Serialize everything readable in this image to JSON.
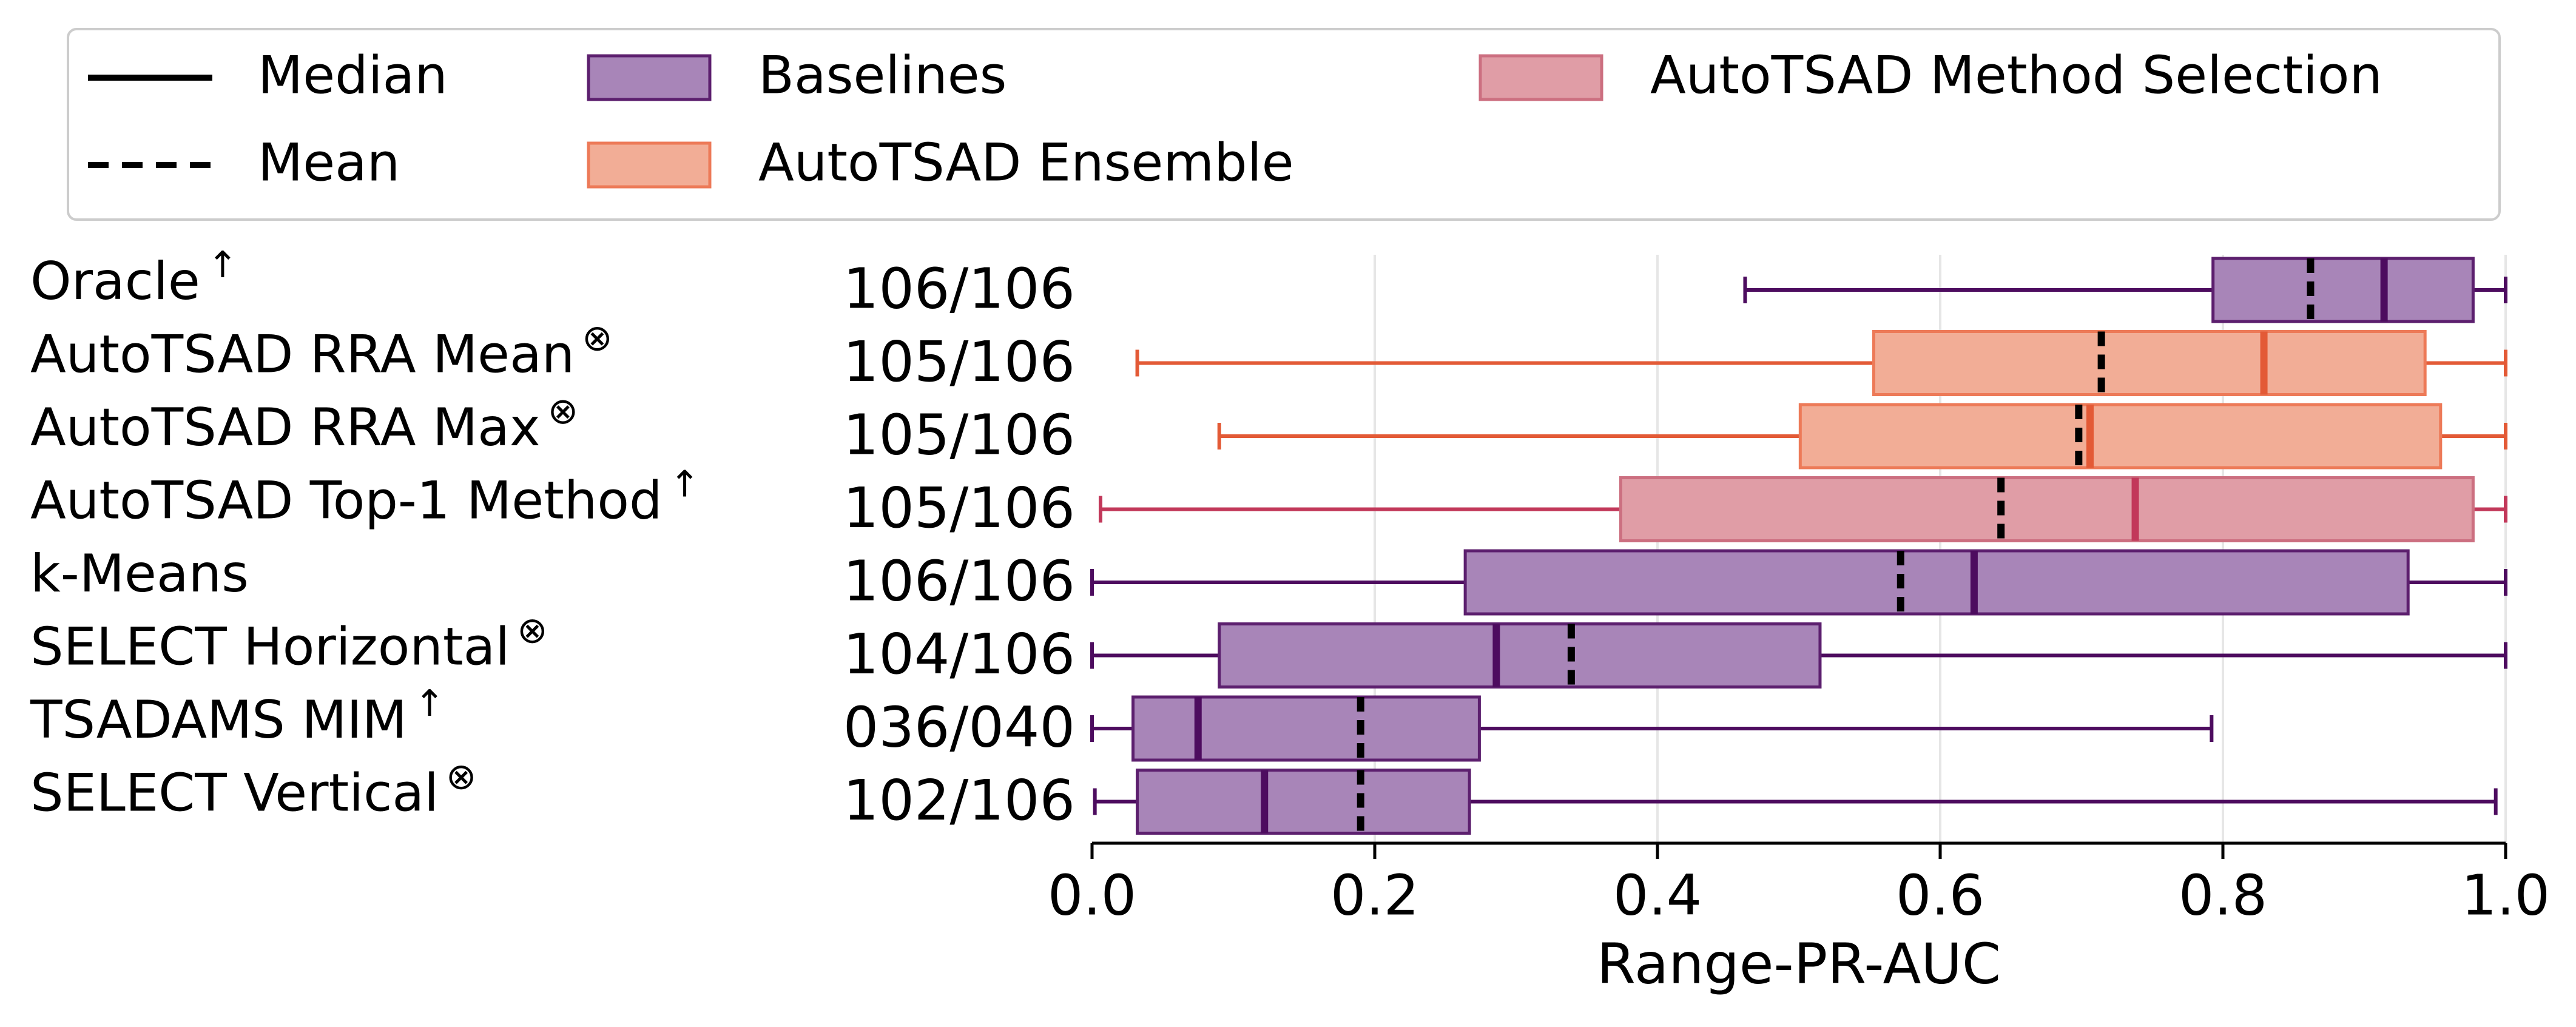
{
  "chart_data": {
    "type": "boxplot",
    "orientation": "horizontal",
    "xlabel": "Range-PR-AUC",
    "xlim": [
      0.0,
      1.0
    ],
    "xticks": [
      "0.0",
      "0.2",
      "0.4",
      "0.6",
      "0.8",
      "1.0"
    ],
    "grid": "vertical",
    "legend": {
      "placement": "top",
      "entries": [
        {
          "label": "Median",
          "kind": "solid-line"
        },
        {
          "label": "Mean",
          "kind": "dashed-line"
        },
        {
          "label": "Baselines",
          "kind": "patch",
          "group": "baseline"
        },
        {
          "label": "AutoTSAD Ensemble",
          "kind": "patch",
          "group": "ensemble"
        },
        {
          "label": "AutoTSAD Method Selection",
          "kind": "patch",
          "group": "selection"
        }
      ]
    },
    "groups": {
      "baseline": {
        "fill": "#a885b8",
        "edge": "#5c1f6e",
        "whisker": "#4d0c5f"
      },
      "ensemble": {
        "fill": "#f2ad96",
        "edge": "#ed7a58",
        "whisker": "#e35a36"
      },
      "selection": {
        "fill": "#e09da6",
        "edge": "#cc6f80",
        "whisker": "#c2385a"
      }
    },
    "rows": [
      {
        "label": "Oracle",
        "sup": "↑",
        "count": "106/106",
        "group": "baseline",
        "whisker_low": 0.462,
        "q1": 0.793,
        "median": 0.914,
        "mean": 0.862,
        "q3": 0.977,
        "whisker_high": 1.0
      },
      {
        "label": "AutoTSAD RRA  Mean",
        "sup": "⊗",
        "count": "105/106",
        "group": "ensemble",
        "whisker_low": 0.032,
        "q1": 0.553,
        "median": 0.829,
        "mean": 0.714,
        "q3": 0.943,
        "whisker_high": 1.0
      },
      {
        "label": "AutoTSAD RRA  Max",
        "sup": "⊗",
        "count": "105/106",
        "group": "ensemble",
        "whisker_low": 0.09,
        "q1": 0.501,
        "median": 0.706,
        "mean": 0.698,
        "q3": 0.954,
        "whisker_high": 1.0
      },
      {
        "label": "AutoTSAD Top-1 Method",
        "sup": "↑",
        "count": "105/106",
        "group": "selection",
        "whisker_low": 0.006,
        "q1": 0.374,
        "median": 0.738,
        "mean": 0.643,
        "q3": 0.977,
        "whisker_high": 1.0
      },
      {
        "label": "k-Means",
        "sup": "",
        "count": "106/106",
        "group": "baseline",
        "whisker_low": 0.0,
        "q1": 0.264,
        "median": 0.624,
        "mean": 0.572,
        "q3": 0.931,
        "whisker_high": 1.0
      },
      {
        "label": "SELECT Horizontal",
        "sup": "⊗",
        "count": "104/106",
        "group": "baseline",
        "whisker_low": 0.0,
        "q1": 0.09,
        "median": 0.286,
        "mean": 0.339,
        "q3": 0.515,
        "whisker_high": 1.0
      },
      {
        "label": "TSADAMS MIM",
        "sup": "↑",
        "count": "036/040",
        "group": "baseline",
        "whisker_low": 0.0,
        "q1": 0.029,
        "median": 0.075,
        "mean": 0.19,
        "q3": 0.274,
        "whisker_high": 0.792
      },
      {
        "label": "SELECT Vertical",
        "sup": "⊗",
        "count": "102/106",
        "group": "baseline",
        "whisker_low": 0.002,
        "q1": 0.032,
        "median": 0.122,
        "mean": 0.19,
        "q3": 0.267,
        "whisker_high": 0.993
      }
    ]
  }
}
